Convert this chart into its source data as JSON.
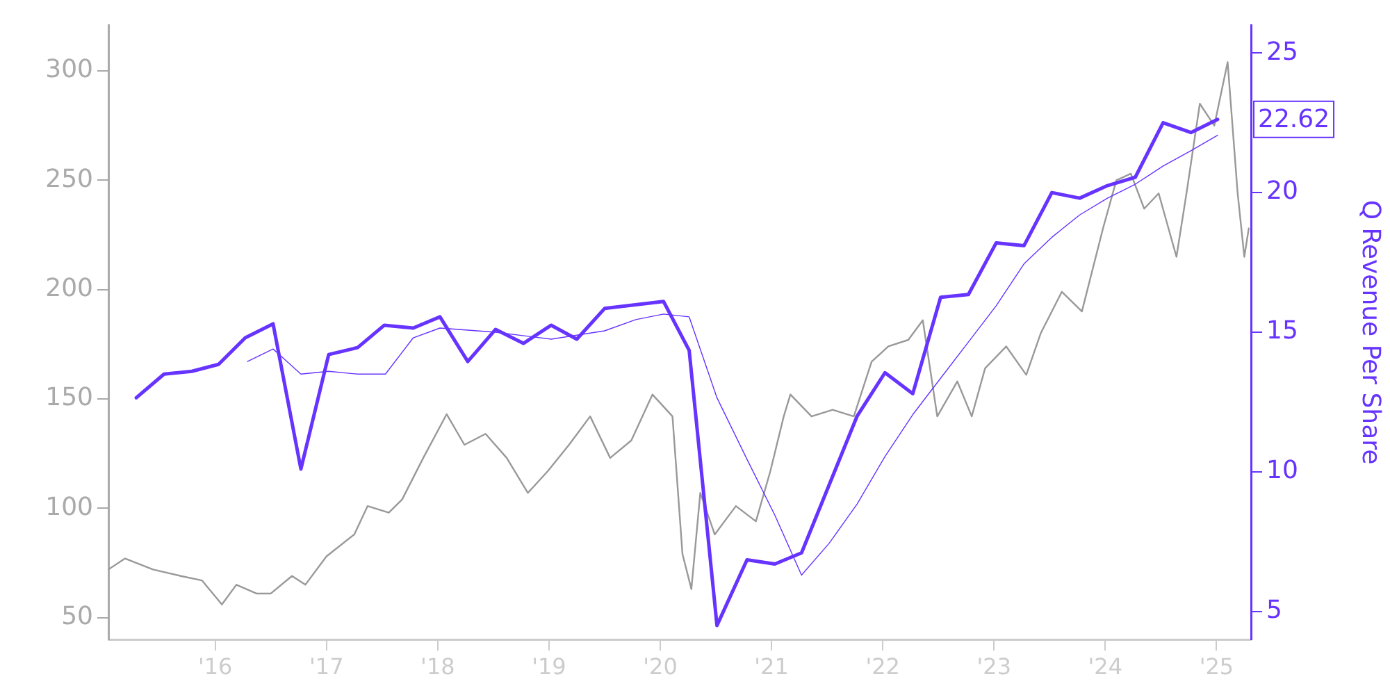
{
  "chart_data": {
    "type": "line",
    "y2label": "Q Revenue Per Share",
    "xlim": [
      2015.04,
      2025.31
    ],
    "xticks": [
      {
        "value": 2016,
        "label": "'16"
      },
      {
        "value": 2017,
        "label": "'17"
      },
      {
        "value": 2018,
        "label": "'18"
      },
      {
        "value": 2019,
        "label": "'19"
      },
      {
        "value": 2020,
        "label": "'20"
      },
      {
        "value": 2021,
        "label": "'21"
      },
      {
        "value": 2022,
        "label": "'22"
      },
      {
        "value": 2023,
        "label": "'23"
      },
      {
        "value": 2024,
        "label": "'24"
      },
      {
        "value": 2025,
        "label": "'25"
      }
    ],
    "ylim": [
      40,
      321
    ],
    "yticks": [
      50,
      100,
      150,
      200,
      250,
      300
    ],
    "y2lim": [
      4,
      26
    ],
    "y2ticks": [
      5,
      10,
      15,
      20,
      25
    ],
    "grid": false,
    "legend": false,
    "marker": "none",
    "line_style": "solid",
    "series": [
      {
        "color": "#999999",
        "x": [
          2015.04,
          2015.19,
          2015.44,
          2015.69,
          2015.88,
          2016.06,
          2016.19,
          2016.37,
          2016.5,
          2016.69,
          2016.81,
          2017.0,
          2017.25,
          2017.37,
          2017.56,
          2017.68,
          2017.87,
          2018.08,
          2018.24,
          2018.43,
          2018.62,
          2018.81,
          2018.99,
          2019.18,
          2019.37,
          2019.55,
          2019.74,
          2019.93,
          2020.11,
          2020.2,
          2020.28,
          2020.36,
          2020.49,
          2020.68,
          2020.86,
          2020.99,
          2021.11,
          2021.17,
          2021.36,
          2021.55,
          2021.74,
          2021.9,
          2022.05,
          2022.23,
          2022.36,
          2022.49,
          2022.67,
          2022.8,
          2022.92,
          2023.11,
          2023.29,
          2023.42,
          2023.61,
          2023.79,
          2023.98,
          2024.1,
          2024.23,
          2024.35,
          2024.48,
          2024.64,
          2024.73,
          2024.85,
          2024.98,
          2025.1,
          2025.19,
          2025.25,
          2025.29
        ],
        "values": [
          72,
          77,
          72,
          69,
          67,
          56,
          65,
          61,
          61,
          69,
          65,
          78,
          88,
          101,
          98,
          104,
          123,
          143,
          129,
          134,
          123,
          107,
          117,
          129,
          142,
          123,
          131,
          152,
          142,
          79,
          63,
          107,
          88,
          101,
          94,
          117,
          142,
          152,
          142,
          145,
          142,
          167,
          174,
          177,
          186,
          142,
          158,
          142,
          164,
          174,
          161,
          180,
          199,
          190,
          228,
          250,
          253,
          237,
          244,
          215,
          244,
          285,
          275,
          304,
          244,
          215,
          228
        ]
      },
      {
        "color": "#6633ff",
        "axis": "y2",
        "x": [
          2015.29,
          2015.54,
          2015.79,
          2016.03,
          2016.27,
          2016.52,
          2016.77,
          2017.02,
          2017.28,
          2017.52,
          2017.78,
          2018.02,
          2018.27,
          2018.52,
          2018.77,
          2019.02,
          2019.25,
          2019.5,
          2020.03,
          2020.26,
          2020.51,
          2020.78,
          2021.03,
          2021.27,
          2021.52,
          2021.77,
          2022.02,
          2022.27,
          2022.52,
          2022.77,
          2023.02,
          2023.27,
          2023.52,
          2023.77,
          2024.02,
          2024.27,
          2024.52,
          2024.77,
          2025.01
        ],
        "values": [
          12.65,
          13.5,
          13.6,
          13.85,
          14.8,
          15.3,
          10.1,
          14.2,
          14.45,
          15.25,
          15.15,
          15.55,
          13.95,
          15.1,
          14.6,
          15.25,
          14.75,
          15.85,
          16.1,
          14.35,
          4.5,
          6.85,
          6.7,
          7.1,
          9.55,
          12.0,
          13.55,
          12.8,
          16.25,
          16.35,
          18.2,
          18.1,
          20.0,
          19.8,
          20.25,
          20.55,
          22.5,
          22.15,
          22.62
        ],
        "value_labels": [
          null,
          null,
          null,
          null,
          null,
          null,
          null,
          null,
          null,
          null,
          null,
          null,
          null,
          null,
          null,
          null,
          null,
          null,
          null,
          null,
          null,
          null,
          null,
          null,
          null,
          null,
          null,
          null,
          null,
          null,
          null,
          null,
          null,
          null,
          null,
          null,
          null,
          null,
          "22.62"
        ]
      },
      {
        "color": "#6633ff",
        "axis": "y2",
        "x": [
          2016.29,
          2016.52,
          2016.77,
          2017.02,
          2017.28,
          2017.53,
          2017.78,
          2018.02,
          2018.52,
          2019.02,
          2019.5,
          2019.78,
          2020.03,
          2020.26,
          2020.51,
          2020.78,
          2021.03,
          2021.27,
          2021.52,
          2021.77,
          2022.02,
          2022.27,
          2022.52,
          2022.77,
          2023.02,
          2023.27,
          2023.52,
          2023.77,
          2024.02,
          2024.27,
          2024.52,
          2024.77,
          2025.01
        ],
        "values": [
          13.95,
          14.4,
          13.5,
          13.6,
          13.5,
          13.5,
          14.8,
          15.15,
          15.0,
          14.75,
          15.05,
          15.45,
          15.65,
          15.55,
          12.65,
          10.45,
          8.45,
          6.3,
          7.45,
          8.85,
          10.55,
          12.05,
          13.35,
          14.65,
          15.95,
          17.45,
          18.4,
          19.2,
          19.8,
          20.3,
          20.95,
          21.5,
          22.05
        ]
      }
    ]
  }
}
